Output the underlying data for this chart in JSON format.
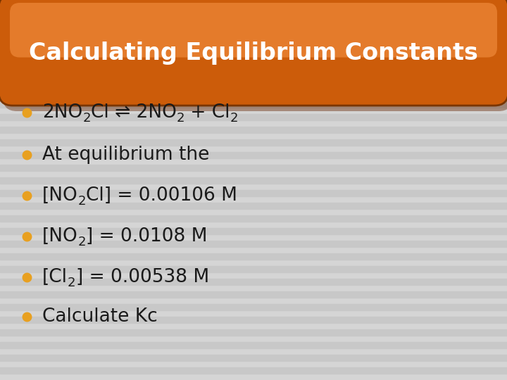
{
  "title": "Calculating Equilibrium Constants",
  "title_text_color": "#FFFFFF",
  "bg_color": "#D5D5D5",
  "stripe_color_dark": "#C8C8C8",
  "stripe_color_light": "#DCDCDC",
  "bullet_color": "#E8A020",
  "banner_dark": "#B84E08",
  "banner_mid": "#CC5C0A",
  "banner_bright": "#E07018",
  "banner_highlight": "#E88030",
  "banner_shadow": "#6B3010",
  "text_color": "#1A1A1A",
  "figsize": [
    7.2,
    5.4
  ],
  "dpi": 100,
  "title_fontsize": 24,
  "main_fontsize": 19,
  "sub_fontsize": 13,
  "bullet_lines": [
    [
      [
        "2NO",
        false
      ],
      [
        "2",
        true
      ],
      [
        "Cl ⇌ 2NO",
        false
      ],
      [
        "2",
        true
      ],
      [
        " + Cl",
        false
      ],
      [
        "2",
        true
      ]
    ],
    [
      [
        "At equilibrium the",
        false
      ]
    ],
    [
      [
        "[NO",
        false
      ],
      [
        "2",
        true
      ],
      [
        "Cl] = 0.00106 M",
        false
      ]
    ],
    [
      [
        "[NO",
        false
      ],
      [
        "2",
        true
      ],
      [
        "] = 0.0108 M",
        false
      ]
    ],
    [
      [
        "[Cl",
        false
      ],
      [
        "2",
        true
      ],
      [
        "] = 0.00538 M",
        false
      ]
    ],
    [
      [
        "Calculate Kc",
        false
      ]
    ]
  ]
}
